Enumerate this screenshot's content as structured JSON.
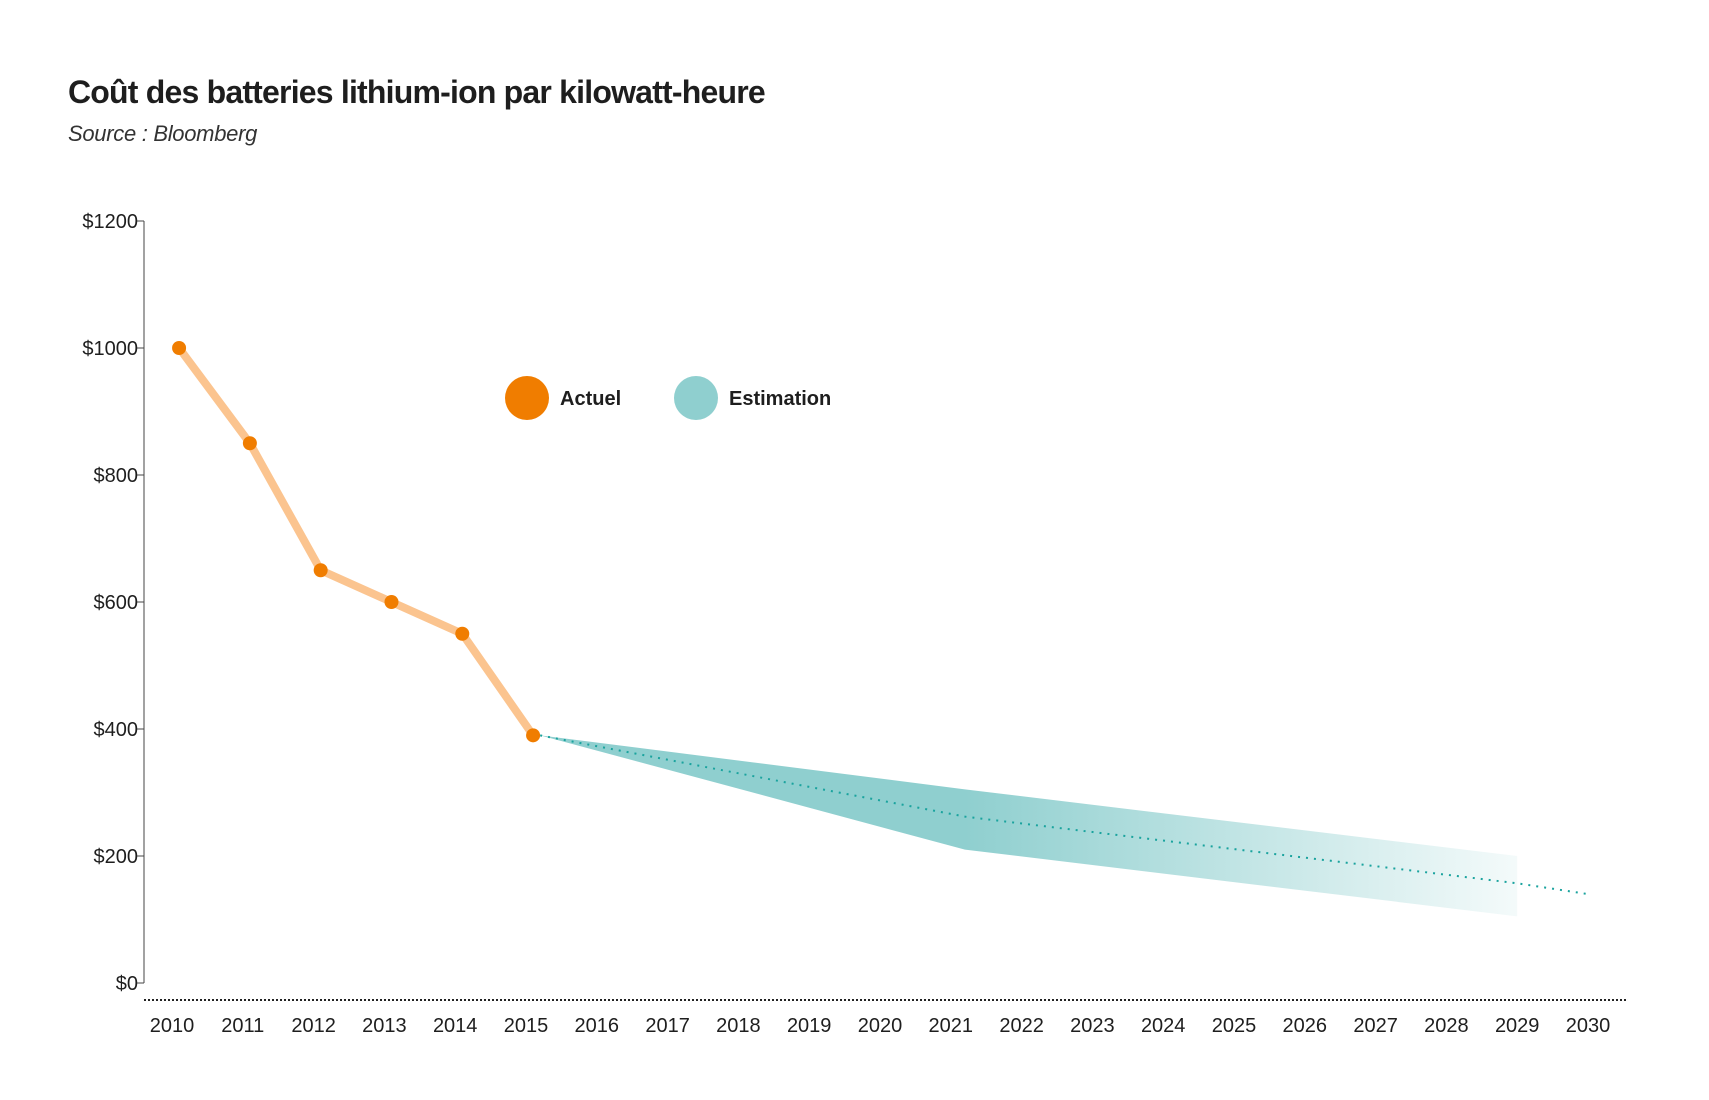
{
  "chart_data": {
    "type": "line",
    "title": "Coût des batteries lithium-ion par kilowatt-heure",
    "subtitle": "Source : Bloomberg",
    "xlabel": "",
    "ylabel": "",
    "ylim": [
      0,
      1200
    ],
    "xlim": [
      2010,
      2030
    ],
    "y_ticks": [
      0,
      200,
      400,
      600,
      800,
      1000,
      1200
    ],
    "y_tick_labels": [
      "$0",
      "$200",
      "$400",
      "$600",
      "$800",
      "$1000",
      "$1200"
    ],
    "x_tick_labels": [
      "2010",
      "2011",
      "2012",
      "2013",
      "2014",
      "2015",
      "2016",
      "2017",
      "2018",
      "2019",
      "2020",
      "2021",
      "2022",
      "2023",
      "2024",
      "2025",
      "2026",
      "2027",
      "2028",
      "2029",
      "2030"
    ],
    "legend": {
      "placement": "top-center",
      "items": [
        {
          "label": "Actuel",
          "color": "#f07d00"
        },
        {
          "label": "Estimation",
          "color": "#8fcfcf"
        }
      ]
    },
    "series": [
      {
        "name": "Actuel",
        "color": "#f07d00",
        "line_color": "#fbc48f",
        "x": [
          2010.1,
          2011.1,
          2012.1,
          2013.1,
          2014.1,
          2015.1
        ],
        "y": [
          1000,
          850,
          650,
          600,
          550,
          390
        ]
      },
      {
        "name": "Estimation",
        "color": "#1aa39e",
        "band_color": "#8fcfcf",
        "x": [
          2015.2,
          2021.2,
          2029,
          2030
        ],
        "y": [
          390,
          262,
          157,
          140
        ],
        "band_upper": [
          390,
          305,
          200
        ],
        "band_lower": [
          390,
          210,
          105
        ],
        "band_x": [
          2015.2,
          2021.2,
          2029
        ]
      }
    ]
  }
}
